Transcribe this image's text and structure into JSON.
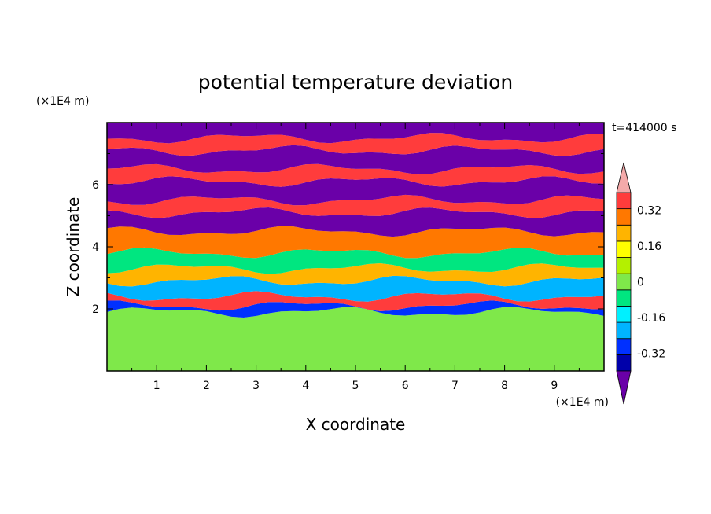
{
  "chart_data": {
    "type": "heatmap",
    "title": "potential temperature deviation",
    "time_label": "t=414000 s",
    "xlabel": "X coordinate",
    "ylabel": "Z coordinate",
    "x_unit": "(×1E4 m)",
    "y_unit": "(×1E4 m)",
    "xlim": [
      0,
      10
    ],
    "ylim": [
      0,
      8
    ],
    "x_ticks": [
      "1",
      "2",
      "3",
      "4",
      "5",
      "6",
      "7",
      "8",
      "9"
    ],
    "y_ticks": [
      "2",
      "4",
      "6"
    ],
    "colorbar": {
      "levels": [
        -0.48,
        -0.4,
        -0.32,
        -0.24,
        -0.16,
        -0.08,
        0,
        0.08,
        0.16,
        0.24,
        0.32,
        0.4,
        0.48
      ],
      "colors": [
        "#6a00a8",
        "#0000aa",
        "#0030ff",
        "#00b4ff",
        "#00f0ff",
        "#00e680",
        "#7fe84a",
        "#b4f000",
        "#ffff00",
        "#ffb400",
        "#ff7800",
        "#ff3c3c",
        "#f4aaaa"
      ],
      "tick_labels": [
        "0.32",
        "0.16",
        "0",
        "-0.16",
        "-0.32"
      ],
      "tick_values": [
        0.32,
        0.16,
        0,
        -0.16,
        -0.32
      ],
      "extend": "both"
    },
    "layers": [
      {
        "z": [
          0.0,
          1.9
        ],
        "value": 0.04
      },
      {
        "z": [
          1.9,
          2.1
        ],
        "value": -0.36
      },
      {
        "z": [
          2.1,
          2.4
        ],
        "value": 0.44
      },
      {
        "z": [
          2.4,
          2.9
        ],
        "value": -0.2
      },
      {
        "z": [
          2.9,
          3.3
        ],
        "value": 0.2
      },
      {
        "z": [
          3.3,
          3.8
        ],
        "value": -0.1
      },
      {
        "z": [
          3.8,
          4.5
        ],
        "value": 0.36
      },
      {
        "z": [
          4.5,
          5.1
        ],
        "value": -0.44
      },
      {
        "z": [
          5.1,
          5.5
        ],
        "value": 0.44
      },
      {
        "z": [
          5.5,
          6.1
        ],
        "value": -0.44
      },
      {
        "z": [
          6.1,
          6.5
        ],
        "value": 0.44
      },
      {
        "z": [
          6.5,
          7.1
        ],
        "value": -0.44
      },
      {
        "z": [
          7.1,
          7.5
        ],
        "value": 0.44
      },
      {
        "z": [
          7.5,
          8.0
        ],
        "value": -0.44
      }
    ]
  }
}
